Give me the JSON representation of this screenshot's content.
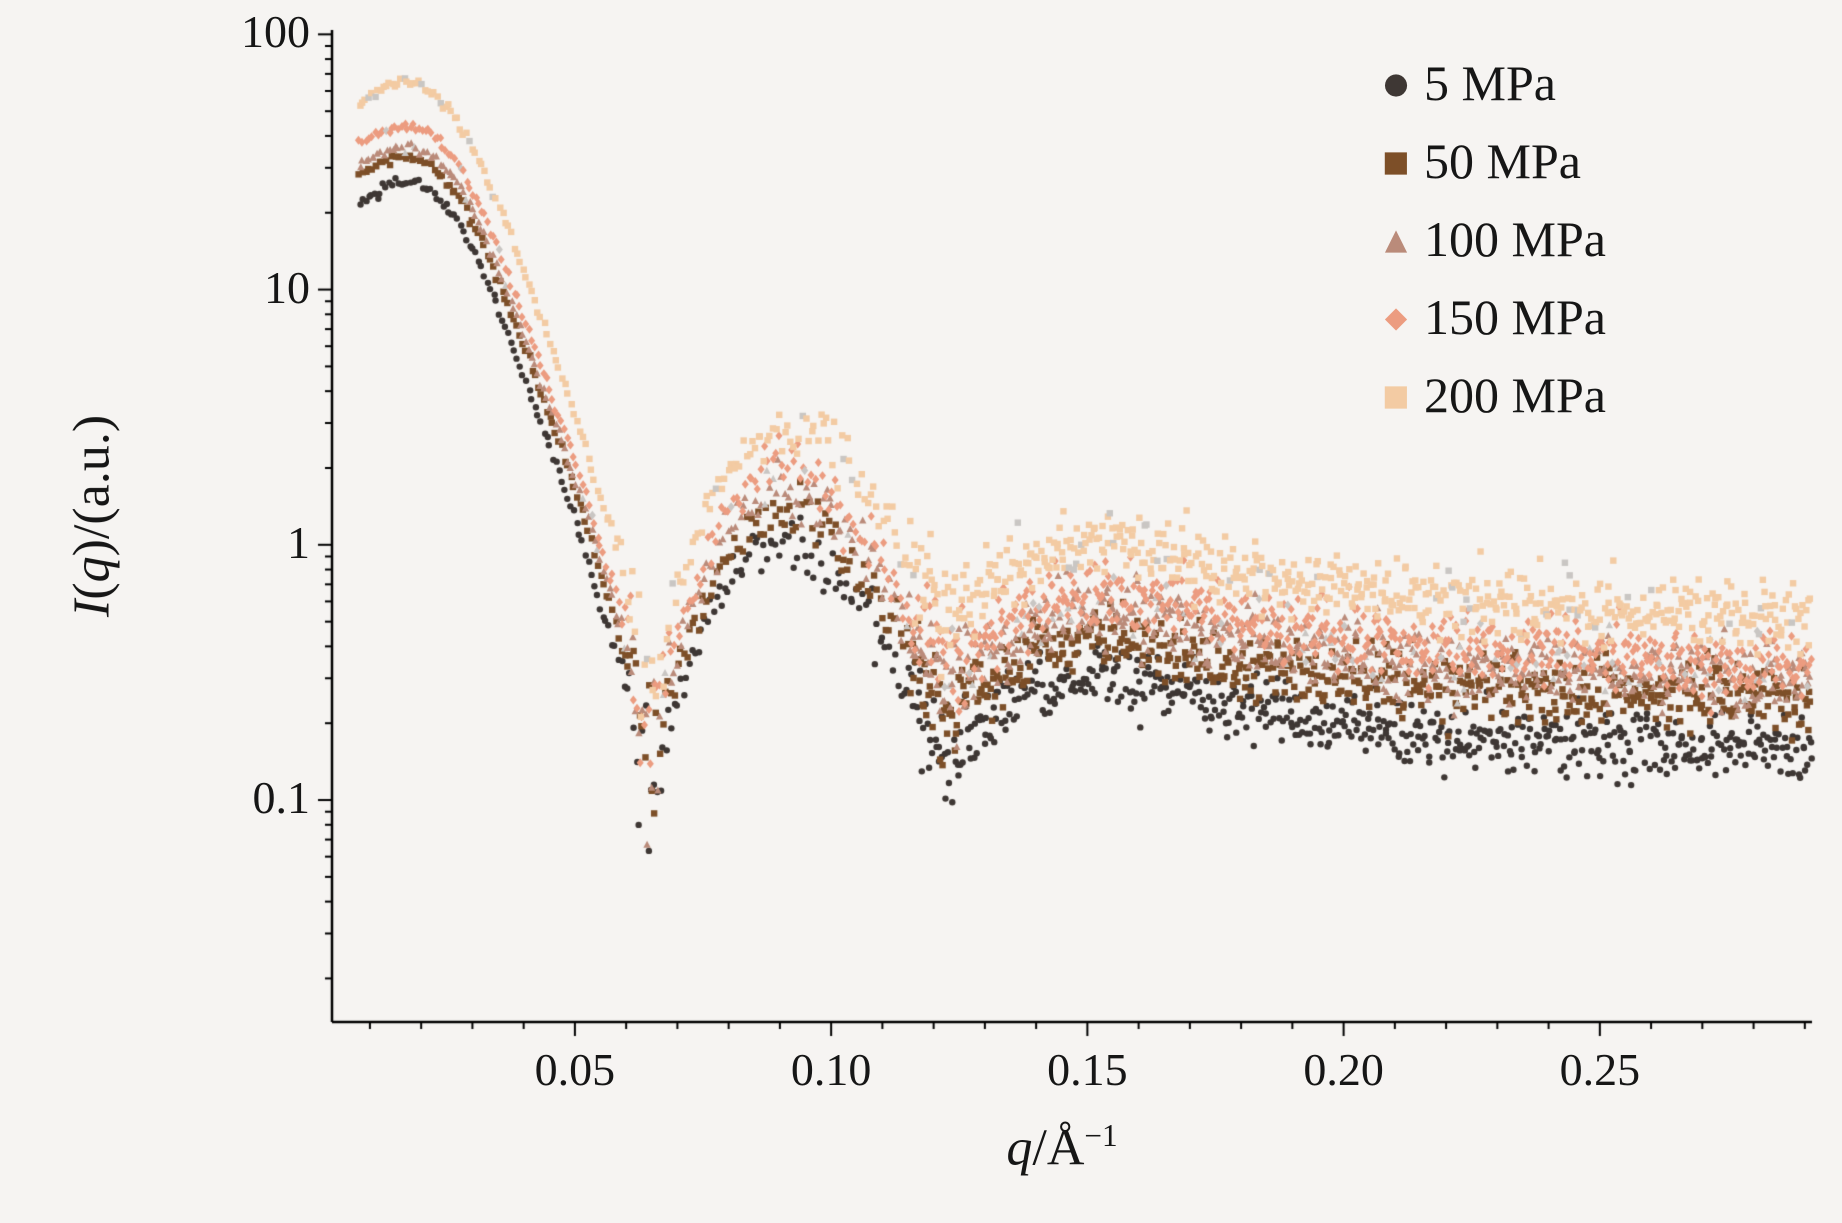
{
  "figure": {
    "background": "#f6f4f2",
    "axis_color": "#000000",
    "tick_label_color": "#161616"
  },
  "chart_data": {
    "type": "scatter",
    "title": "",
    "xlabel": "q/Å⁻¹",
    "ylabel": "I(q)/(a.u.)",
    "xlabel_parts": [
      {
        "text": "q",
        "italic": true
      },
      {
        "text": "/Å",
        "italic": false
      },
      {
        "text": "−1",
        "italic": false,
        "sup": true
      }
    ],
    "ylabel_parts": [
      {
        "text": "I",
        "italic": true
      },
      {
        "text": "(",
        "italic": false
      },
      {
        "text": "q",
        "italic": true
      },
      {
        "text": ")/(a.u.)",
        "italic": false
      }
    ],
    "x_axis": {
      "scale": "linear",
      "min": 0.0026,
      "max": 0.2914,
      "minor_step": 0.01,
      "major_ticks": [
        {
          "v": 0.05,
          "label": "0.05"
        },
        {
          "v": 0.1,
          "label": "0.10"
        },
        {
          "v": 0.15,
          "label": "0.15"
        },
        {
          "v": 0.2,
          "label": "0.20"
        },
        {
          "v": 0.25,
          "label": "0.25"
        }
      ]
    },
    "y_axis": {
      "scale": "log",
      "min": 0.0135,
      "max": 104,
      "major_ticks": [
        {
          "v": 100,
          "label": "100"
        },
        {
          "v": 10,
          "label": "10"
        },
        {
          "v": 1,
          "label": "1"
        },
        {
          "v": 0.1,
          "label": "0.1"
        }
      ]
    },
    "legend_position": "top-right",
    "q_nodes": [
      0.008,
      0.013,
      0.018,
      0.022,
      0.027,
      0.032,
      0.037,
      0.042,
      0.047,
      0.052,
      0.056,
      0.0595,
      0.062,
      0.0645,
      0.068,
      0.073,
      0.079,
      0.085,
      0.0895,
      0.095,
      0.101,
      0.108,
      0.115,
      0.1205,
      0.1235,
      0.128,
      0.135,
      0.142,
      0.149,
      0.156,
      0.164,
      0.173,
      0.183,
      0.194,
      0.206,
      0.219,
      0.233,
      0.248,
      0.264,
      0.2914
    ],
    "series": [
      {
        "name": "5 MPa",
        "marker": "circle",
        "color": "#3e3734",
        "intensity": [
          22,
          25.5,
          26.5,
          24.5,
          19,
          12,
          6.8,
          3.6,
          1.9,
          0.95,
          0.5,
          0.3,
          0.175,
          0.11,
          0.18,
          0.36,
          0.68,
          0.93,
          1.04,
          0.99,
          0.8,
          0.52,
          0.28,
          0.175,
          0.145,
          0.18,
          0.24,
          0.275,
          0.3,
          0.3,
          0.28,
          0.25,
          0.225,
          0.2,
          0.185,
          0.175,
          0.17,
          0.165,
          0.16,
          0.155
        ]
      },
      {
        "name": "50 MPa",
        "marker": "square",
        "color": "#7d4f28",
        "intensity": [
          28,
          32,
          33.5,
          31,
          24,
          15.5,
          8.8,
          4.7,
          2.45,
          1.25,
          0.65,
          0.39,
          0.23,
          0.145,
          0.24,
          0.48,
          0.9,
          1.24,
          1.38,
          1.31,
          1.06,
          0.7,
          0.38,
          0.245,
          0.21,
          0.26,
          0.335,
          0.385,
          0.42,
          0.42,
          0.395,
          0.36,
          0.33,
          0.305,
          0.29,
          0.28,
          0.27,
          0.26,
          0.25,
          0.245
        ]
      },
      {
        "name": "100 MPa",
        "marker": "triangle",
        "color": "#ba8b7a",
        "intensity": [
          31,
          35,
          36.5,
          34,
          26.5,
          17,
          9.7,
          5.2,
          2.7,
          1.4,
          0.73,
          0.44,
          0.26,
          0.165,
          0.28,
          0.57,
          1.08,
          1.52,
          1.72,
          1.62,
          1.32,
          0.88,
          0.49,
          0.32,
          0.275,
          0.335,
          0.43,
          0.5,
          0.54,
          0.54,
          0.51,
          0.46,
          0.42,
          0.385,
          0.36,
          0.34,
          0.325,
          0.315,
          0.305,
          0.3
        ]
      },
      {
        "name": "150 MPa",
        "marker": "diamond",
        "color": "#ec9c80",
        "intensity": [
          37,
          42,
          43.5,
          40.5,
          31.5,
          20,
          11.5,
          6.1,
          3.2,
          1.63,
          0.85,
          0.51,
          0.3,
          0.19,
          0.33,
          0.67,
          1.27,
          1.79,
          2.02,
          1.91,
          1.55,
          1.03,
          0.58,
          0.385,
          0.33,
          0.4,
          0.51,
          0.59,
          0.64,
          0.64,
          0.6,
          0.545,
          0.49,
          0.45,
          0.42,
          0.395,
          0.375,
          0.36,
          0.35,
          0.34
        ]
      },
      {
        "name": "200 MPa",
        "marker": "square",
        "color": "#f3cba3",
        "intensity": [
          55,
          62,
          65,
          60,
          47,
          30,
          17.5,
          9.3,
          4.8,
          2.45,
          1.28,
          0.77,
          0.46,
          0.29,
          0.5,
          1.0,
          1.9,
          2.65,
          2.95,
          2.8,
          2.25,
          1.5,
          0.85,
          0.6,
          0.52,
          0.63,
          0.8,
          0.92,
          0.99,
          0.99,
          0.93,
          0.84,
          0.76,
          0.7,
          0.655,
          0.62,
          0.59,
          0.565,
          0.545,
          0.53
        ]
      }
    ]
  }
}
